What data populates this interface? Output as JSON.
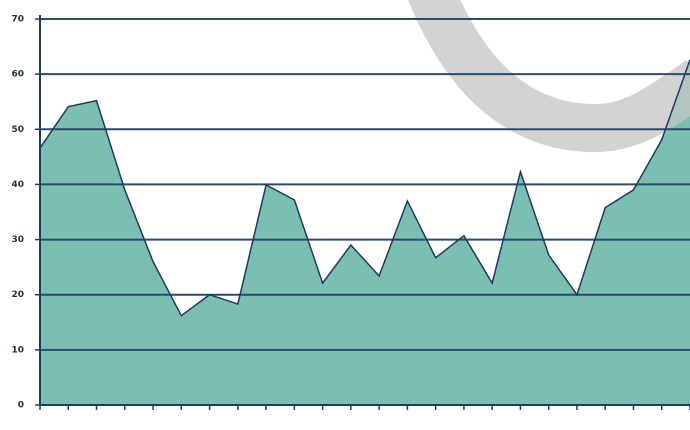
{
  "chart_data": {
    "type": "area",
    "categories": [
      null,
      null,
      null,
      null,
      null,
      null,
      null,
      null,
      null,
      null,
      null,
      null,
      null,
      null,
      null,
      null,
      null,
      null,
      null,
      null,
      null,
      null,
      null,
      null
    ],
    "values": [
      46.6,
      54.1,
      55.2,
      39.0,
      26.0,
      16.2,
      20.0,
      18.3,
      39.9,
      37.2,
      22.1,
      29.0,
      23.4,
      37.0,
      26.7,
      30.7,
      22.1,
      42.3,
      27.2,
      20.0,
      35.8,
      39.0,
      48.1,
      62.6
    ],
    "color": "#7bbfb2",
    "line_color": "#1e3a5f",
    "ylim": [
      0,
      70
    ],
    "yticks": [
      0,
      10,
      20,
      30,
      40,
      50,
      60,
      70
    ],
    "grid": true
  }
}
